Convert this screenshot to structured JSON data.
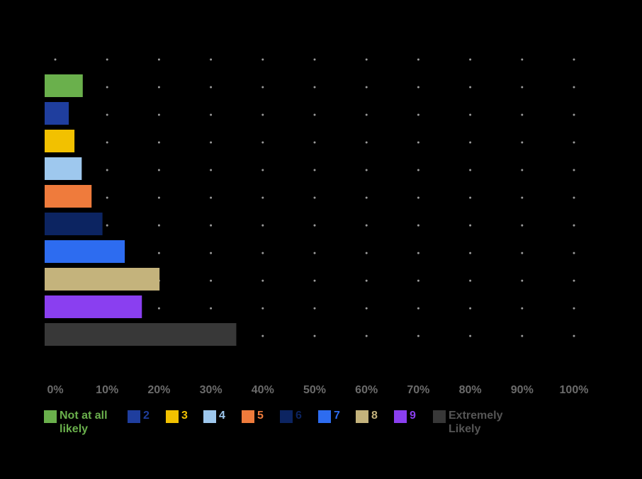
{
  "chart_data": {
    "type": "bar",
    "orientation": "horizontal",
    "title": "",
    "xlabel": "",
    "ylabel": "",
    "xlim": [
      0,
      100
    ],
    "x_ticks": [
      "0%",
      "10%",
      "20%",
      "30%",
      "40%",
      "50%",
      "60%",
      "70%",
      "80%",
      "90%",
      "100%"
    ],
    "grid": "dotted",
    "legend_position": "bottom",
    "categories": [
      "Not at all likely",
      "2",
      "3",
      "4",
      "5",
      "6",
      "7",
      "8",
      "9",
      "Extremely Likely"
    ],
    "values": [
      5.3,
      2.6,
      3.7,
      5.1,
      7,
      9.1,
      13.4,
      20.1,
      16.7,
      34.9
    ],
    "colors": [
      "#6ab04c",
      "#1f3e9e",
      "#f2c100",
      "#9ec8ee",
      "#ef7b3c",
      "#0c2461",
      "#2d6cf0",
      "#c4b37c",
      "#8a3ff0",
      "#383838"
    ],
    "legend": [
      {
        "label": "Not at all likely",
        "color": "#6ab04c"
      },
      {
        "label": "2",
        "color": "#1f3e9e"
      },
      {
        "label": "3",
        "color": "#f2c100"
      },
      {
        "label": "4",
        "color": "#9ec8ee"
      },
      {
        "label": "5",
        "color": "#ef7b3c"
      },
      {
        "label": "6",
        "color": "#0c2461"
      },
      {
        "label": "7",
        "color": "#2d6cf0"
      },
      {
        "label": "8",
        "color": "#c4b37c"
      },
      {
        "label": "9",
        "color": "#8a3ff0"
      },
      {
        "label": "Extremely Likely",
        "color": "#383838"
      }
    ]
  }
}
